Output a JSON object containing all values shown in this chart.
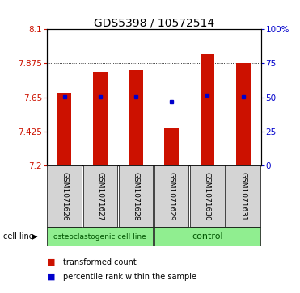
{
  "title": "GDS5398 / 10572514",
  "samples": [
    "GSM1071626",
    "GSM1071627",
    "GSM1071628",
    "GSM1071629",
    "GSM1071630",
    "GSM1071631"
  ],
  "bar_values": [
    7.68,
    7.82,
    7.83,
    7.45,
    7.935,
    7.875
  ],
  "percentile_values": [
    7.652,
    7.655,
    7.655,
    7.622,
    7.665,
    7.655
  ],
  "bar_bottom": 7.2,
  "ylim_left": [
    7.2,
    8.1
  ],
  "ylim_right": [
    0,
    100
  ],
  "yticks_left": [
    7.2,
    7.425,
    7.65,
    7.875,
    8.1
  ],
  "ytick_labels_left": [
    "7.2",
    "7.425",
    "7.65",
    "7.875",
    "8.1"
  ],
  "yticks_right": [
    0,
    25,
    50,
    75,
    100
  ],
  "ytick_labels_right": [
    "0",
    "25",
    "50",
    "75",
    "100%"
  ],
  "grid_lines": [
    7.425,
    7.65,
    7.875
  ],
  "bar_color": "#cc1100",
  "dot_color": "#0000cc",
  "group1_label": "osteoclastogenic cell line",
  "group2_label": "control",
  "group1_count": 3,
  "group2_count": 3,
  "cell_line_label": "cell line",
  "legend_bar_label": "transformed count",
  "legend_dot_label": "percentile rank within the sample",
  "bg_color": "#ffffff",
  "group_bg_color": "#d4d4d4",
  "green_bg_color": "#90ee90",
  "title_fontsize": 10,
  "axis_fontsize": 7.5,
  "tick_label_fontsize": 7,
  "sample_fontsize": 6.5,
  "group_fontsize": 6.5,
  "legend_fontsize": 7
}
